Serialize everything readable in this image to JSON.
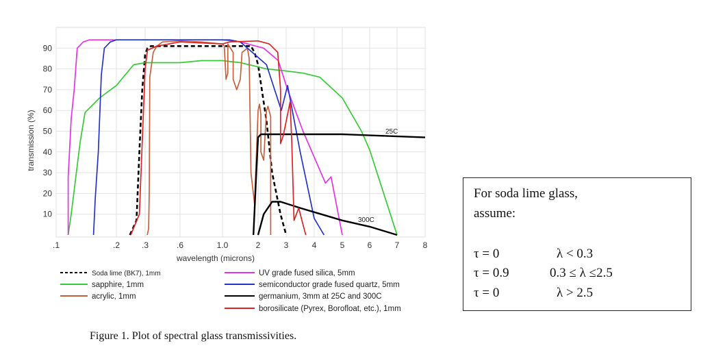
{
  "chart_data": {
    "type": "line",
    "xlabel": "wavelength (microns)",
    "ylabel": "transmission (%)",
    "x_ticks": [
      ".1",
      ".2",
      ".3",
      ".6",
      "1.0",
      "2",
      "3",
      "4",
      "5",
      "6",
      "7",
      "8"
    ],
    "x_tick_values": [
      0.1,
      0.2,
      0.3,
      0.6,
      1.0,
      2,
      3,
      4,
      5,
      6,
      7,
      8
    ],
    "y_ticks": [
      "10",
      "20",
      "30",
      "40",
      "50",
      "60",
      "70",
      "80",
      "90"
    ],
    "xlim": [
      0.1,
      8
    ],
    "ylim": [
      0,
      97
    ],
    "grid": true,
    "legend_position": "bottom",
    "series": [
      {
        "name": "Soda lime (BK7), 1mm",
        "color": "#000000",
        "dash": true,
        "x": [
          0.247,
          0.27,
          0.28,
          0.29,
          0.3,
          0.32,
          0.35,
          0.5,
          1.0,
          1.5,
          1.8,
          1.9,
          2.0,
          2.3,
          2.5,
          2.8,
          3.0
        ],
        "y": [
          0,
          7,
          40,
          70,
          87,
          90,
          91,
          91,
          91,
          91,
          91,
          88,
          82,
          55,
          30,
          10,
          0
        ]
      },
      {
        "name": "sapphire, 1mm",
        "color": "#33cc33",
        "x": [
          0.12,
          0.125,
          0.14,
          0.148,
          0.172,
          0.2,
          0.26,
          0.3,
          0.6,
          0.8,
          1.0,
          1.5,
          2.0,
          2.3,
          3.0,
          3.6,
          4.2,
          5.0,
          5.7,
          6.0,
          7.0
        ],
        "y": [
          0,
          10,
          45,
          59,
          66,
          72,
          82,
          83,
          83,
          84,
          84,
          83,
          81,
          80,
          79,
          78,
          76,
          66,
          50,
          41,
          0
        ]
      },
      {
        "name": "acrylic, 1mm",
        "color": "#c8603c",
        "x": [
          0.318,
          0.33,
          0.335,
          0.34,
          0.37,
          0.4,
          0.45,
          0.6,
          0.8,
          1.0,
          1.05,
          1.1,
          1.15,
          1.15,
          1.3,
          1.3,
          1.4,
          1.5,
          1.55,
          1.7,
          1.75,
          1.8,
          1.9,
          2.0,
          2.05,
          2.1,
          2.1,
          2.2,
          2.3,
          2.35,
          2.45,
          2.45
        ],
        "y": [
          0,
          3,
          20,
          76,
          88,
          91,
          93,
          93.5,
          93,
          92,
          91,
          75,
          78,
          92,
          88,
          75,
          70,
          75,
          88,
          90,
          85,
          30,
          15,
          60,
          63,
          58,
          40,
          36,
          60,
          62,
          57,
          0
        ]
      },
      {
        "name": "UV grade fused silica, 5mm",
        "color": "#e632e6",
        "x": [
          0.12,
          0.12,
          0.125,
          0.13,
          0.135,
          0.145,
          0.155,
          0.3,
          1.0,
          1.5,
          2.2,
          2.72,
          3.05,
          3.6,
          4.4,
          4.6,
          5.0
        ],
        "y": [
          0,
          28,
          56,
          70,
          90,
          93,
          94,
          94,
          94,
          93,
          90,
          84,
          70,
          50,
          25,
          28,
          0
        ]
      },
      {
        "name": "semiconductor grade fused quartz, 5mm",
        "color": "#2233cc",
        "x": [
          0.162,
          0.165,
          0.17,
          0.175,
          0.18,
          0.19,
          0.2,
          1.2,
          1.5,
          2.3,
          2.83,
          3.05,
          3.5,
          4.0,
          4.35
        ],
        "y": [
          0,
          18,
          40,
          77,
          90,
          93,
          94,
          94,
          93,
          82,
          60,
          72,
          40,
          8,
          0
        ]
      },
      {
        "name": "germanium, 3mm at 25C and 300C",
        "color": "#000000",
        "label": "25C",
        "x": [
          1.87,
          1.95,
          2.0,
          2.1,
          5.0,
          6.0,
          8.0
        ],
        "y": [
          0,
          30,
          47,
          48.5,
          48.5,
          48,
          47
        ]
      },
      {
        "name": "",
        "color": "#000000",
        "label": "300C",
        "x": [
          2.0,
          2.2,
          2.5,
          2.8,
          3.5,
          4.0,
          5.0,
          6.0,
          7.0
        ],
        "y": [
          0,
          10,
          16,
          16,
          13,
          11,
          7,
          4,
          0
        ]
      },
      {
        "name": "borosilicate (Pyrex, Borofloat, etc.), 1mm",
        "color": "#dd2222",
        "x": [
          0.25,
          0.28,
          0.3,
          0.32,
          0.4,
          0.6,
          1.0,
          1.2,
          2.0,
          2.4,
          2.7,
          2.8,
          2.8,
          2.9,
          3.14,
          3.2,
          3.28,
          3.45,
          3.6,
          3.7
        ],
        "y": [
          0,
          10,
          80,
          89,
          91,
          93,
          92,
          93,
          93.5,
          92,
          88,
          70,
          44,
          48,
          64,
          45,
          7,
          13,
          5,
          0
        ]
      }
    ]
  },
  "legend": {
    "col1": [
      "Soda lime (BK7), 1mm",
      "sapphire, 1mm",
      "acrylic, 1mm"
    ],
    "col2": [
      "UV grade fused silica, 5mm",
      "semiconductor grade fused quartz, 5mm",
      "germanium, 3mm at 25C and 300C",
      "borosilicate (Pyrex, Borofloat, etc.), 1mm"
    ]
  },
  "note": {
    "line1": "For soda lime glass,",
    "line2": "assume:",
    "rows": [
      {
        "tau": "τ = 0",
        "cond": "λ < 0.3"
      },
      {
        "tau": "τ = 0.9",
        "cond": "0.3 ≤ λ ≤2.5"
      },
      {
        "tau": "τ = 0",
        "cond": "λ > 2.5"
      }
    ]
  },
  "caption": "Figure 1. Plot of spectral glass transmissivities."
}
